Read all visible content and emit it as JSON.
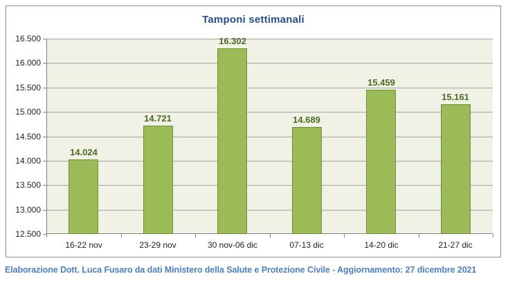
{
  "chart_data": {
    "type": "bar",
    "title": "Tamponi settimanali",
    "categories": [
      "16-22 nov",
      "23-29 nov",
      "30 nov-06 dic",
      "07-13 dic",
      "14-20 dic",
      "21-27 dic"
    ],
    "values": [
      14024,
      14721,
      16302,
      14689,
      15459,
      15161
    ],
    "value_labels": [
      "14.024",
      "14.721",
      "16.302",
      "14.689",
      "15.459",
      "15.161"
    ],
    "xlabel": "",
    "ylabel": "",
    "ylim": [
      12500,
      16500
    ],
    "y_tick_step": 500,
    "y_tick_labels_top_to_bottom": [
      "16.500",
      "16.000",
      "15.500",
      "15.000",
      "14.500",
      "14.000",
      "13.500",
      "13.000",
      "12.500"
    ],
    "grid": true,
    "legend": false,
    "colors": {
      "title": "#25508F",
      "bar_fill": "#9BBB59",
      "bar_border": "#6F8F35",
      "value_label": "#4E6B23",
      "plot_bg": "#F0F2E5",
      "gridline": "#A5A5A5",
      "axis_line": "#808080",
      "axis_text": "#1F1F1F",
      "frame_border": "#8A8A8A"
    }
  },
  "footer": {
    "text": "Elaborazione Dott. Luca Fusaro da dati Ministero della Salute e Protezione Civile - Aggiornamento: 27 dicembre 2021",
    "color": "#4C80BF"
  }
}
